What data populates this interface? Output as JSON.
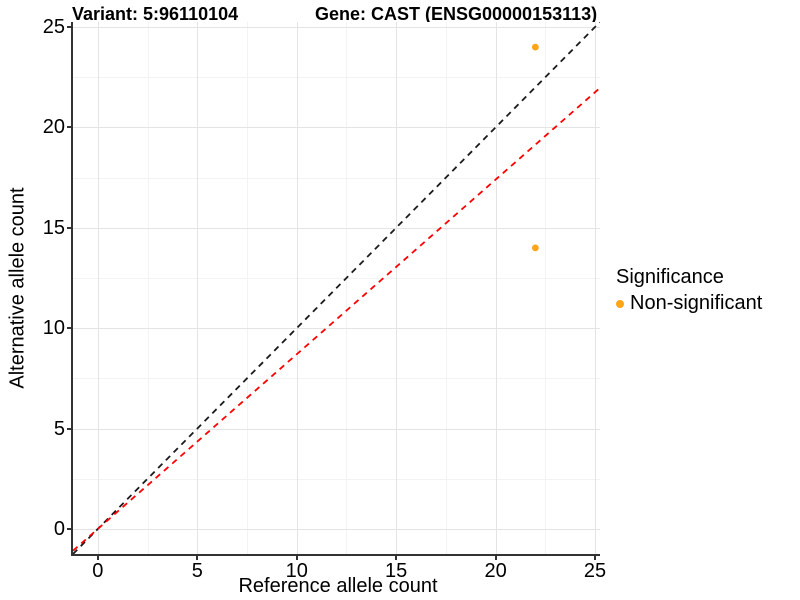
{
  "header": {
    "variant_title": "Variant: 5:96110104",
    "gene_title": "Gene: CAST (ENSG00000153113)"
  },
  "chart_data": {
    "type": "scatter",
    "title": "Variant: 5:96110104 — Gene: CAST (ENSG00000153113)",
    "xlabel": "Reference allele count",
    "ylabel": "Alternative allele count",
    "xlim": [
      -1.25,
      25.25
    ],
    "ylim": [
      -1.25,
      25.25
    ],
    "x_ticks": [
      0,
      5,
      10,
      15,
      20,
      25
    ],
    "y_ticks": [
      0,
      5,
      10,
      15,
      20,
      25
    ],
    "x_minor_ticks": [
      2.5,
      7.5,
      12.5,
      17.5,
      22.5
    ],
    "y_minor_ticks": [
      2.5,
      7.5,
      12.5,
      17.5,
      22.5
    ],
    "grid": true,
    "series": [
      {
        "name": "Non-significant",
        "color": "#FFA516",
        "points": [
          {
            "x": 22,
            "y": 24
          },
          {
            "x": 22,
            "y": 14
          }
        ]
      }
    ],
    "lines": [
      {
        "name": "identity-line",
        "slope": 1,
        "intercept": 0,
        "color": "#1A1A1A",
        "style": "dashed"
      },
      {
        "name": "expected-ratio-line",
        "slope": 0.87,
        "intercept": 0,
        "color": "#FF0000",
        "style": "dashed"
      }
    ],
    "legend": {
      "title": "Significance",
      "position": "right",
      "entries": [
        "Non-significant"
      ]
    }
  }
}
